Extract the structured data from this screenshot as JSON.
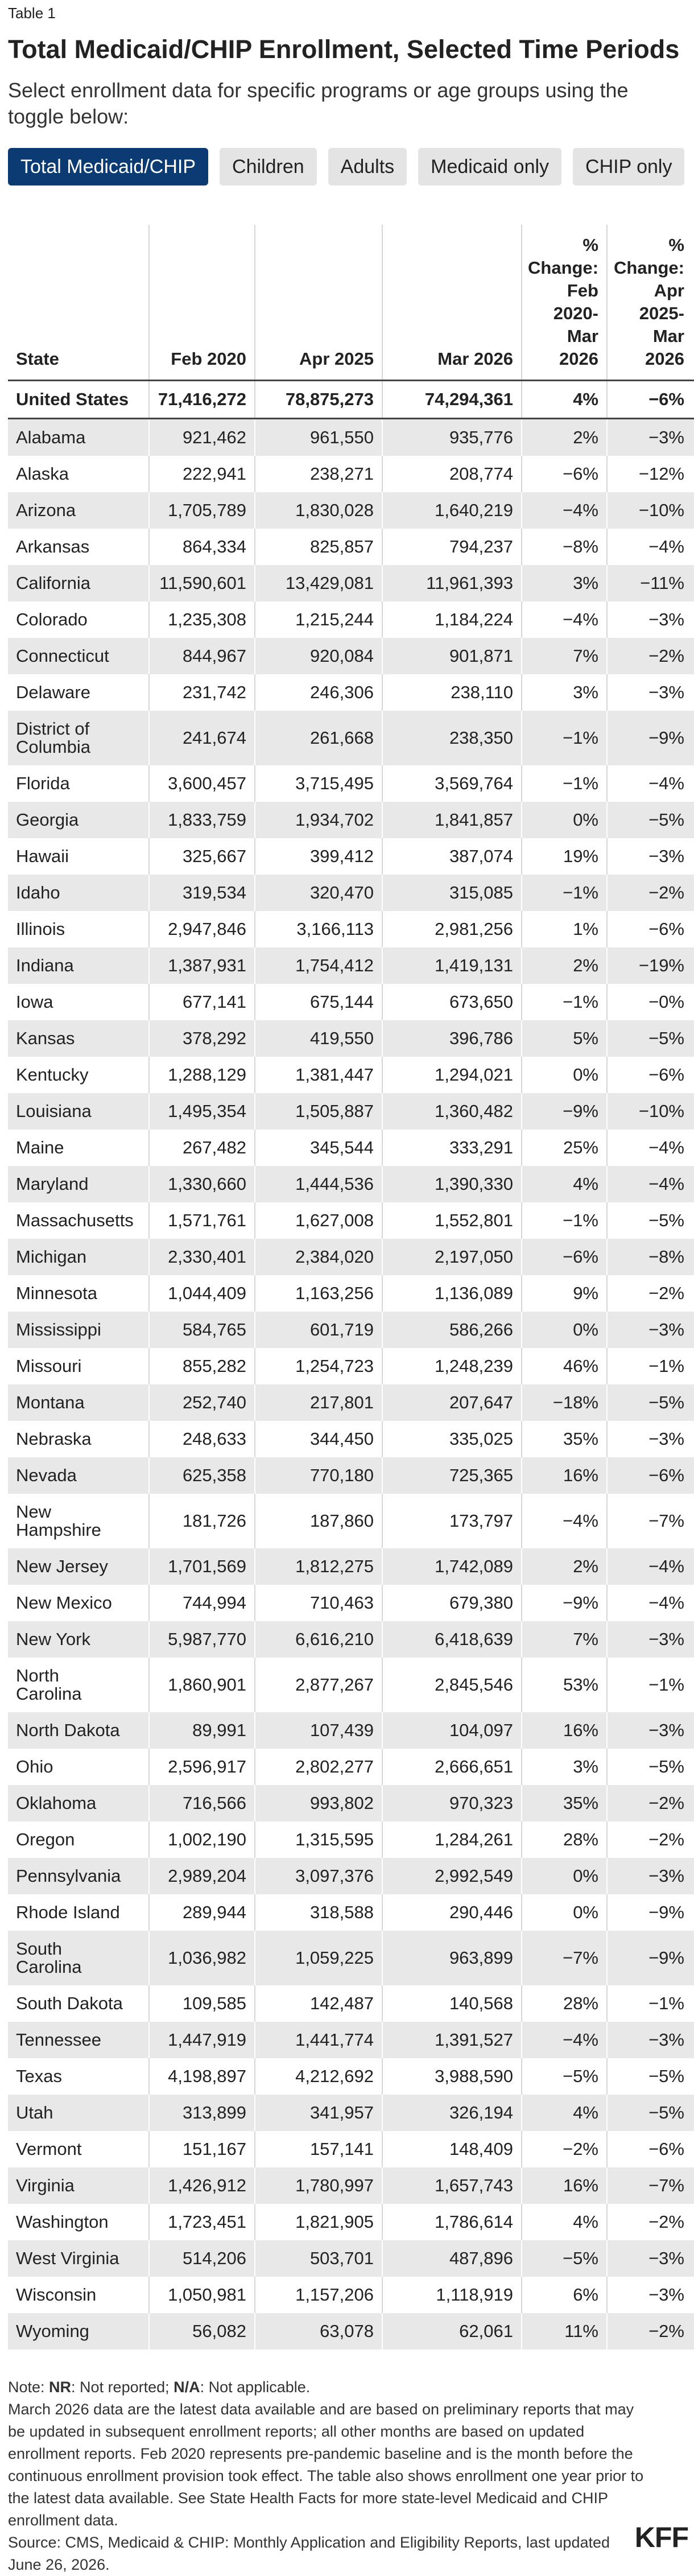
{
  "header": {
    "label": "Table 1",
    "title": "Total Medicaid/CHIP Enrollment, Selected Time Periods",
    "subtitle": "Select enrollment data for specific programs or age groups using the toggle below:"
  },
  "toggles": [
    "Total Medicaid/CHIP",
    "Children",
    "Adults",
    "Medicaid only",
    "CHIP only"
  ],
  "table": {
    "columns": [
      "State",
      "Feb 2020",
      "Apr 2025",
      "Mar 2026",
      "% Change: Feb 2020-Mar 2026",
      "% Change: Apr 2025-Mar 2026"
    ],
    "rows": [
      [
        "United States",
        "71,416,272",
        "78,875,273",
        "74,294,361",
        "4%",
        "−6%"
      ],
      [
        "Alabama",
        "921,462",
        "961,550",
        "935,776",
        "2%",
        "−3%"
      ],
      [
        "Alaska",
        "222,941",
        "238,271",
        "208,774",
        "−6%",
        "−12%"
      ],
      [
        "Arizona",
        "1,705,789",
        "1,830,028",
        "1,640,219",
        "−4%",
        "−10%"
      ],
      [
        "Arkansas",
        "864,334",
        "825,857",
        "794,237",
        "−8%",
        "−4%"
      ],
      [
        "California",
        "11,590,601",
        "13,429,081",
        "11,961,393",
        "3%",
        "−11%"
      ],
      [
        "Colorado",
        "1,235,308",
        "1,215,244",
        "1,184,224",
        "−4%",
        "−3%"
      ],
      [
        "Connecticut",
        "844,967",
        "920,084",
        "901,871",
        "7%",
        "−2%"
      ],
      [
        "Delaware",
        "231,742",
        "246,306",
        "238,110",
        "3%",
        "−3%"
      ],
      [
        "District of Columbia",
        "241,674",
        "261,668",
        "238,350",
        "−1%",
        "−9%"
      ],
      [
        "Florida",
        "3,600,457",
        "3,715,495",
        "3,569,764",
        "−1%",
        "−4%"
      ],
      [
        "Georgia",
        "1,833,759",
        "1,934,702",
        "1,841,857",
        "0%",
        "−5%"
      ],
      [
        "Hawaii",
        "325,667",
        "399,412",
        "387,074",
        "19%",
        "−3%"
      ],
      [
        "Idaho",
        "319,534",
        "320,470",
        "315,085",
        "−1%",
        "−2%"
      ],
      [
        "Illinois",
        "2,947,846",
        "3,166,113",
        "2,981,256",
        "1%",
        "−6%"
      ],
      [
        "Indiana",
        "1,387,931",
        "1,754,412",
        "1,419,131",
        "2%",
        "−19%"
      ],
      [
        "Iowa",
        "677,141",
        "675,144",
        "673,650",
        "−1%",
        "−0%"
      ],
      [
        "Kansas",
        "378,292",
        "419,550",
        "396,786",
        "5%",
        "−5%"
      ],
      [
        "Kentucky",
        "1,288,129",
        "1,381,447",
        "1,294,021",
        "0%",
        "−6%"
      ],
      [
        "Louisiana",
        "1,495,354",
        "1,505,887",
        "1,360,482",
        "−9%",
        "−10%"
      ],
      [
        "Maine",
        "267,482",
        "345,544",
        "333,291",
        "25%",
        "−4%"
      ],
      [
        "Maryland",
        "1,330,660",
        "1,444,536",
        "1,390,330",
        "4%",
        "−4%"
      ],
      [
        "Massachusetts",
        "1,571,761",
        "1,627,008",
        "1,552,801",
        "−1%",
        "−5%"
      ],
      [
        "Michigan",
        "2,330,401",
        "2,384,020",
        "2,197,050",
        "−6%",
        "−8%"
      ],
      [
        "Minnesota",
        "1,044,409",
        "1,163,256",
        "1,136,089",
        "9%",
        "−2%"
      ],
      [
        "Mississippi",
        "584,765",
        "601,719",
        "586,266",
        "0%",
        "−3%"
      ],
      [
        "Missouri",
        "855,282",
        "1,254,723",
        "1,248,239",
        "46%",
        "−1%"
      ],
      [
        "Montana",
        "252,740",
        "217,801",
        "207,647",
        "−18%",
        "−5%"
      ],
      [
        "Nebraska",
        "248,633",
        "344,450",
        "335,025",
        "35%",
        "−3%"
      ],
      [
        "Nevada",
        "625,358",
        "770,180",
        "725,365",
        "16%",
        "−6%"
      ],
      [
        "New Hampshire",
        "181,726",
        "187,860",
        "173,797",
        "−4%",
        "−7%"
      ],
      [
        "New Jersey",
        "1,701,569",
        "1,812,275",
        "1,742,089",
        "2%",
        "−4%"
      ],
      [
        "New Mexico",
        "744,994",
        "710,463",
        "679,380",
        "−9%",
        "−4%"
      ],
      [
        "New York",
        "5,987,770",
        "6,616,210",
        "6,418,639",
        "7%",
        "−3%"
      ],
      [
        "North Carolina",
        "1,860,901",
        "2,877,267",
        "2,845,546",
        "53%",
        "−1%"
      ],
      [
        "North Dakota",
        "89,991",
        "107,439",
        "104,097",
        "16%",
        "−3%"
      ],
      [
        "Ohio",
        "2,596,917",
        "2,802,277",
        "2,666,651",
        "3%",
        "−5%"
      ],
      [
        "Oklahoma",
        "716,566",
        "993,802",
        "970,323",
        "35%",
        "−2%"
      ],
      [
        "Oregon",
        "1,002,190",
        "1,315,595",
        "1,284,261",
        "28%",
        "−2%"
      ],
      [
        "Pennsylvania",
        "2,989,204",
        "3,097,376",
        "2,992,549",
        "0%",
        "−3%"
      ],
      [
        "Rhode Island",
        "289,944",
        "318,588",
        "290,446",
        "0%",
        "−9%"
      ],
      [
        "South Carolina",
        "1,036,982",
        "1,059,225",
        "963,899",
        "−7%",
        "−9%"
      ],
      [
        "South Dakota",
        "109,585",
        "142,487",
        "140,568",
        "28%",
        "−1%"
      ],
      [
        "Tennessee",
        "1,447,919",
        "1,441,774",
        "1,391,527",
        "−4%",
        "−3%"
      ],
      [
        "Texas",
        "4,198,897",
        "4,212,692",
        "3,988,590",
        "−5%",
        "−5%"
      ],
      [
        "Utah",
        "313,899",
        "341,957",
        "326,194",
        "4%",
        "−5%"
      ],
      [
        "Vermont",
        "151,167",
        "157,141",
        "148,409",
        "−2%",
        "−6%"
      ],
      [
        "Virginia",
        "1,426,912",
        "1,780,997",
        "1,657,743",
        "16%",
        "−7%"
      ],
      [
        "Washington",
        "1,723,451",
        "1,821,905",
        "1,786,614",
        "4%",
        "−2%"
      ],
      [
        "West Virginia",
        "514,206",
        "503,701",
        "487,896",
        "−5%",
        "−3%"
      ],
      [
        "Wisconsin",
        "1,050,981",
        "1,157,206",
        "1,118,919",
        "6%",
        "−3%"
      ],
      [
        "Wyoming",
        "56,082",
        "63,078",
        "62,061",
        "11%",
        "−2%"
      ]
    ]
  },
  "note_parts": [
    "Note: ",
    "NR",
    ": Not reported; ",
    "N/A",
    ": Not applicable."
  ],
  "notes": "March 2026 data are the latest data available and are based on preliminary reports that may be updated in subsequent enrollment reports; all other months are based on updated enrollment reports. Feb 2020 represents pre-pandemic baseline and is the month before the continuous enrollment provision took effect. The table also shows enrollment one year prior to the latest data available. See State Health Facts for more state-level Medicaid and CHIP enrollment data.",
  "source": "Source: CMS, Medicaid & CHIP: Monthly Application and Eligibility Reports, last updated June 26, 2026.",
  "logo": "KFF"
}
